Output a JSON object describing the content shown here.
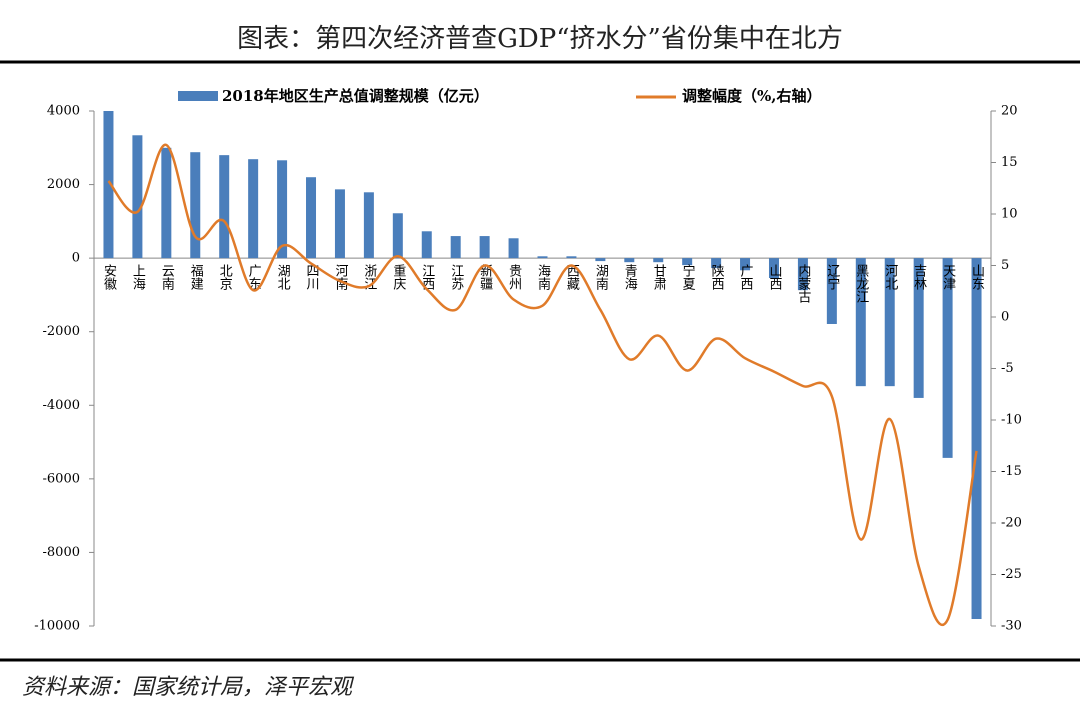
{
  "chart_data": {
    "type": "bar_line",
    "title": "图表：第四次经济普查GDP“挤水分”省份集中在北方",
    "source": "资料来源：国家统计局，泽平宏观",
    "categories": [
      "安徽",
      "上海",
      "云南",
      "福建",
      "北京",
      "广东",
      "湖北",
      "四川",
      "河南",
      "浙江",
      "重庆",
      "江西",
      "江苏",
      "新疆",
      "贵州",
      "海南",
      "西藏",
      "湖南",
      "青海",
      "甘肃",
      "宁夏",
      "陕西",
      "广西",
      "山西",
      "内蒙古",
      "辽宁",
      "黑龙江",
      "河北",
      "吉林",
      "天津",
      "山东"
    ],
    "series": [
      {
        "name": "2018年地区生产总值调整规模（亿元）",
        "type": "bar",
        "color": "#4a7ebb",
        "values": [
          4000,
          3340,
          3000,
          2880,
          2800,
          2690,
          2660,
          2200,
          1870,
          1790,
          1220,
          730,
          600,
          600,
          540,
          50,
          50,
          -80,
          -110,
          -110,
          -190,
          -270,
          -330,
          -540,
          -870,
          -1790,
          -3480,
          -3480,
          -3800,
          -5430,
          -9810
        ]
      },
      {
        "name": "调整幅度（%,右轴）",
        "type": "line",
        "axis": "y2",
        "color": "#e07b2a",
        "values": [
          13.2,
          10.2,
          16.7,
          7.8,
          9.3,
          2.6,
          6.9,
          5.2,
          3.5,
          3.0,
          5.9,
          2.7,
          0.7,
          5.0,
          1.7,
          1.1,
          5.0,
          0.7,
          -4.1,
          -1.8,
          -5.2,
          -2.1,
          -4.0,
          -5.3,
          -6.7,
          -7.7,
          -21.6,
          -9.9,
          -24.2,
          -29.4,
          -13.0
        ]
      }
    ],
    "ylim": [
      -10000,
      4000
    ],
    "yticks": [
      -10000,
      -8000,
      -6000,
      -4000,
      -2000,
      0,
      2000,
      4000
    ],
    "y2lim": [
      -30,
      20
    ],
    "y2ticks": [
      -30,
      -25,
      -20,
      -15,
      -10,
      -5,
      0,
      5,
      10,
      15,
      20
    ]
  }
}
